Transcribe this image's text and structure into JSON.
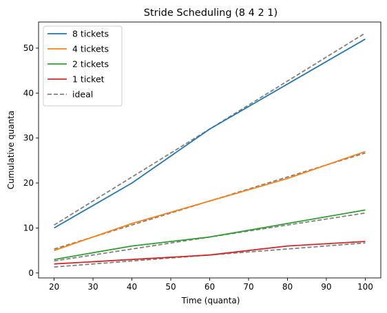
{
  "chart_data": {
    "type": "line",
    "title": "Stride Scheduling (8 4 2 1)",
    "xlabel": "Time (quanta)",
    "ylabel": "Cumulative quanta",
    "x": [
      20,
      40,
      60,
      80,
      100
    ],
    "xlim": [
      16,
      104
    ],
    "ylim": [
      -1.1,
      55.8
    ],
    "xticks": [
      20,
      30,
      40,
      50,
      60,
      70,
      80,
      90,
      100
    ],
    "yticks": [
      0,
      10,
      20,
      30,
      40,
      50
    ],
    "grid": false,
    "legend": "top-left",
    "series": [
      {
        "name": "8 tickets",
        "color": "#1f77b4",
        "style": "solid",
        "values": [
          10,
          20,
          32,
          42,
          52
        ]
      },
      {
        "name": "4 tickets",
        "color": "#ff7f0e",
        "style": "solid",
        "values": [
          5,
          11,
          16,
          21,
          27
        ]
      },
      {
        "name": "2 tickets",
        "color": "#2ca02c",
        "style": "solid",
        "values": [
          3,
          6,
          8,
          11,
          14
        ]
      },
      {
        "name": "1 ticket",
        "color": "#d62728",
        "style": "solid",
        "values": [
          2,
          3,
          4,
          6,
          7
        ]
      }
    ],
    "ideal": {
      "name": "ideal",
      "color": "#808080",
      "style": "dashed",
      "lines": [
        {
          "x": [
            20,
            100
          ],
          "values": [
            10.67,
            53.33
          ]
        },
        {
          "x": [
            20,
            100
          ],
          "values": [
            5.33,
            26.67
          ]
        },
        {
          "x": [
            20,
            100
          ],
          "values": [
            2.67,
            13.33
          ]
        },
        {
          "x": [
            20,
            100
          ],
          "values": [
            1.33,
            6.67
          ]
        }
      ]
    }
  }
}
